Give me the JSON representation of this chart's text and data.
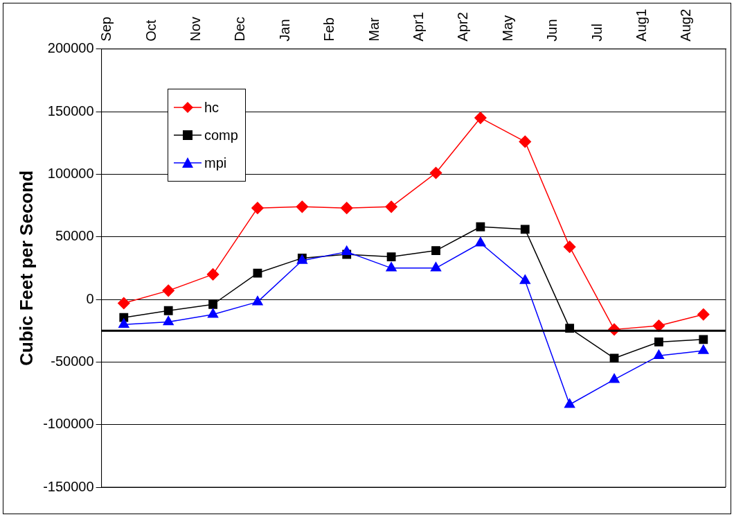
{
  "chart_data": {
    "type": "line",
    "ylabel": "Cubic Feet per Second",
    "categories": [
      "Sep",
      "Oct",
      "Nov",
      "Dec",
      "Jan",
      "Feb",
      "Mar",
      "Apr1",
      "Apr2",
      "May",
      "Jun",
      "Jul",
      "Aug1",
      "Aug2"
    ],
    "series": [
      {
        "name": "hc",
        "color": "#ff0000",
        "marker": "diamond",
        "values": [
          -3000,
          7000,
          20000,
          73000,
          74000,
          73000,
          74000,
          101000,
          145000,
          126000,
          42000,
          -24000,
          -21000,
          -12000
        ]
      },
      {
        "name": "comp",
        "color": "#000000",
        "marker": "square",
        "values": [
          -14500,
          -9000,
          -4000,
          21000,
          33000,
          36000,
          34000,
          39000,
          58000,
          56000,
          -23000,
          -47000,
          -34000,
          -32000
        ]
      },
      {
        "name": "mpi",
        "color": "#0000ff",
        "marker": "triangle",
        "values": [
          -20000,
          -18000,
          -12000,
          -2000,
          31000,
          38000,
          25000,
          25000,
          45000,
          15000,
          -84000,
          -64000,
          -45000,
          -41000
        ]
      }
    ],
    "ylim": [
      -150000,
      200000
    ],
    "yticks": [
      -150000,
      -100000,
      -50000,
      0,
      50000,
      100000,
      150000,
      200000
    ],
    "grid": "y",
    "legend": "top left",
    "line_style": "solid",
    "ref_lines": [
      {
        "axis": "y",
        "value": -25000,
        "color": "#000000"
      }
    ]
  }
}
